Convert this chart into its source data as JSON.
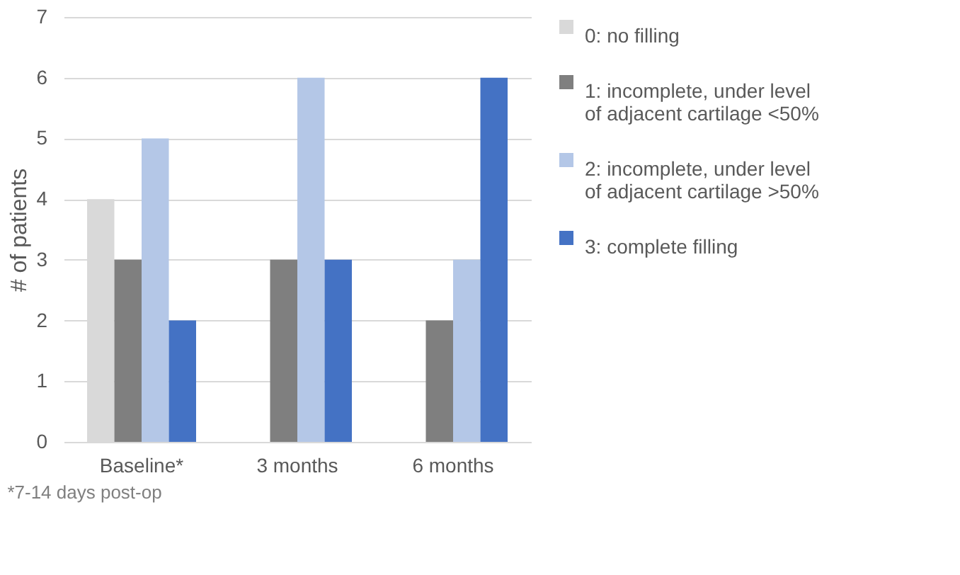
{
  "chart_data": {
    "type": "bar",
    "ylabel": "# of patients",
    "categories": [
      "Baseline*",
      "3 months",
      "6 months"
    ],
    "series": [
      {
        "name": "0: no filling",
        "color": "#d9d9d9",
        "values": [
          4,
          0,
          0
        ]
      },
      {
        "name": "1: incomplete, under level of adjacent cartilage <50%",
        "color": "#7f7f7f",
        "values": [
          3,
          3,
          2
        ]
      },
      {
        "name": "2: incomplete, under level of adjacent cartilage >50%",
        "color": "#b4c7e7",
        "values": [
          5,
          6,
          3
        ]
      },
      {
        "name": "3: complete filling",
        "color": "#4472c4",
        "values": [
          2,
          3,
          6
        ]
      }
    ],
    "ylim": [
      0,
      7
    ],
    "yticks": [
      0,
      1,
      2,
      3,
      4,
      5,
      6,
      7
    ],
    "grid": "y",
    "legend": "right",
    "annotations": [
      "*7-14 days post-op"
    ]
  }
}
